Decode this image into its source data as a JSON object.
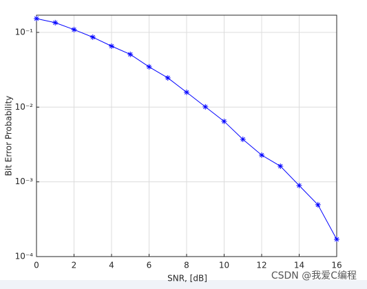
{
  "chart_data": {
    "type": "line",
    "xlabel": "SNR, [dB]",
    "ylabel": "Bit Error Probability",
    "x": [
      0,
      1,
      2,
      3,
      4,
      5,
      6,
      7,
      8,
      9,
      10,
      11,
      12,
      13,
      14,
      15,
      16
    ],
    "series": [
      {
        "color": "#0000ff",
        "marker": "asterisk",
        "values": [
          0.153,
          0.135,
          0.109,
          0.0863,
          0.0655,
          0.0508,
          0.0346,
          0.0246,
          0.0158,
          0.0101,
          0.00645,
          0.00371,
          0.00228,
          0.00162,
          0.000893,
          0.000493,
          0.00017
        ]
      }
    ],
    "xlim": [
      0,
      16
    ],
    "xticks": [
      0,
      2,
      4,
      6,
      8,
      10,
      12,
      14,
      16
    ],
    "ylim": [
      0.0001,
      0.17
    ],
    "ylog": true,
    "yticks": [
      {
        "value": 0.0001,
        "label": "10⁻⁴"
      },
      {
        "value": 0.001,
        "label": "10⁻³"
      },
      {
        "value": 0.01,
        "label": "10⁻²"
      },
      {
        "value": 0.1,
        "label": "10⁻¹"
      }
    ],
    "grid": true,
    "watermark": "CSDN @我爱C编程"
  }
}
